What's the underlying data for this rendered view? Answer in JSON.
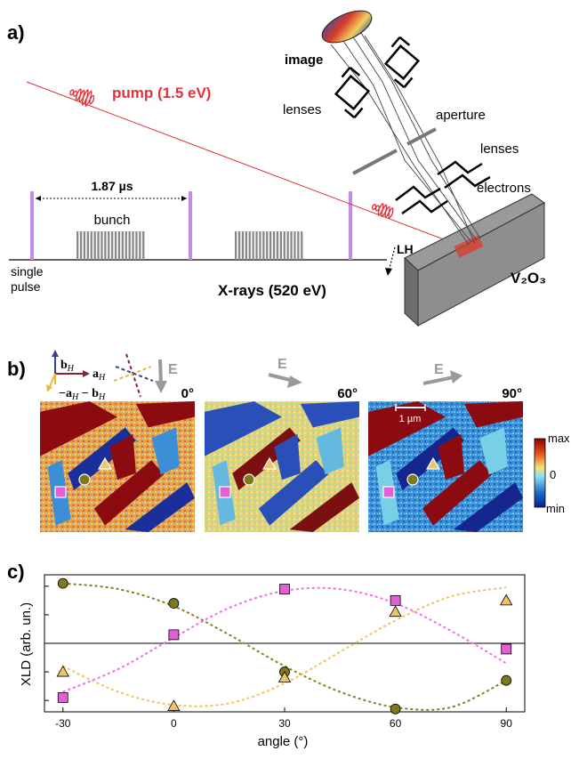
{
  "panel_a": {
    "label": "a)",
    "image_label": "image",
    "lenses_top": "lenses",
    "aperture": "aperture",
    "lenses_mid": "lenses",
    "electrons": "electrons",
    "pump_label": "pump (1.5 eV)",
    "period": "1.87 µs",
    "bunch": "bunch",
    "single_pulse_1": "single",
    "single_pulse_2": "pulse",
    "lh": "LH",
    "xrays": "X-rays (520 eV)",
    "sample": "V₂O₃",
    "colors": {
      "pump": "#e0343a",
      "pulse_marker": "#c78be6",
      "bunch": "#888888",
      "sample": "#8e8e8e"
    }
  },
  "panel_b": {
    "label": "b)",
    "axes_legend": {
      "b": "b",
      "a": "a",
      "combo": "−a",
      "sub_H": "H",
      "minus_b": " − b"
    },
    "E_label": "E",
    "scale_bar": "1 µm",
    "maps": [
      {
        "angle": "0°",
        "theme": "warm"
      },
      {
        "angle": "60°",
        "theme": "mixed"
      },
      {
        "angle": "90°",
        "theme": "cool"
      }
    ],
    "colorbar": {
      "max": "max",
      "zero": "0",
      "min": "min",
      "colors": [
        "#8b0000",
        "#e8501a",
        "#f7e27a",
        "#8fe0ee",
        "#1e6ec9",
        "#0a1e8c"
      ]
    }
  },
  "panel_c": {
    "label": "c)"
  },
  "chart_data": {
    "type": "scatter",
    "xlabel": "angle (°)",
    "ylabel": "XLD (arb. un.)",
    "xlim": [
      -35,
      95
    ],
    "ylim": [
      -1.2,
      1.2
    ],
    "x_ticks": [
      "-30",
      "0",
      "30",
      "60",
      "90"
    ],
    "x_tick_values": [
      -30,
      0,
      30,
      60,
      90
    ],
    "series": [
      {
        "marker": "square",
        "color": "#e35fd6",
        "x": [
          -30,
          0,
          30,
          60,
          90
        ],
        "y": [
          -0.95,
          0.15,
          0.95,
          0.75,
          -0.1
        ]
      },
      {
        "marker": "circle",
        "color": "#7c7a1c",
        "x": [
          -30,
          0,
          60,
          90
        ],
        "y": [
          1.05,
          0.7,
          -1.15,
          -0.65
        ]
      },
      {
        "marker": "circle",
        "color": "#7c7a1c",
        "x": [
          30
        ],
        "y": [
          -0.5
        ]
      },
      {
        "marker": "triangle",
        "color": "#eec468",
        "x": [
          -30,
          0,
          30,
          60,
          90
        ],
        "y": [
          -0.5,
          -1.1,
          -0.6,
          0.55,
          0.75
        ]
      }
    ],
    "fits": [
      {
        "color": "#f06ee8",
        "x": [
          -30,
          -15,
          0,
          15,
          30,
          45,
          60,
          75,
          90
        ],
        "y": [
          -0.85,
          -0.45,
          0.1,
          0.62,
          0.92,
          0.95,
          0.7,
          0.22,
          -0.35
        ]
      },
      {
        "color": "#8a7e1e",
        "x": [
          -30,
          -15,
          0,
          15,
          30,
          45,
          60,
          75,
          90
        ],
        "y": [
          1.05,
          0.95,
          0.65,
          0.15,
          -0.4,
          -0.85,
          -1.12,
          -1.12,
          -0.65
        ]
      },
      {
        "color": "#f2c35c",
        "x": [
          -30,
          -15,
          0,
          15,
          30,
          45,
          60,
          75,
          90
        ],
        "y": [
          -0.4,
          -0.85,
          -1.08,
          -1.05,
          -0.7,
          -0.15,
          0.4,
          0.82,
          0.98
        ]
      }
    ]
  }
}
